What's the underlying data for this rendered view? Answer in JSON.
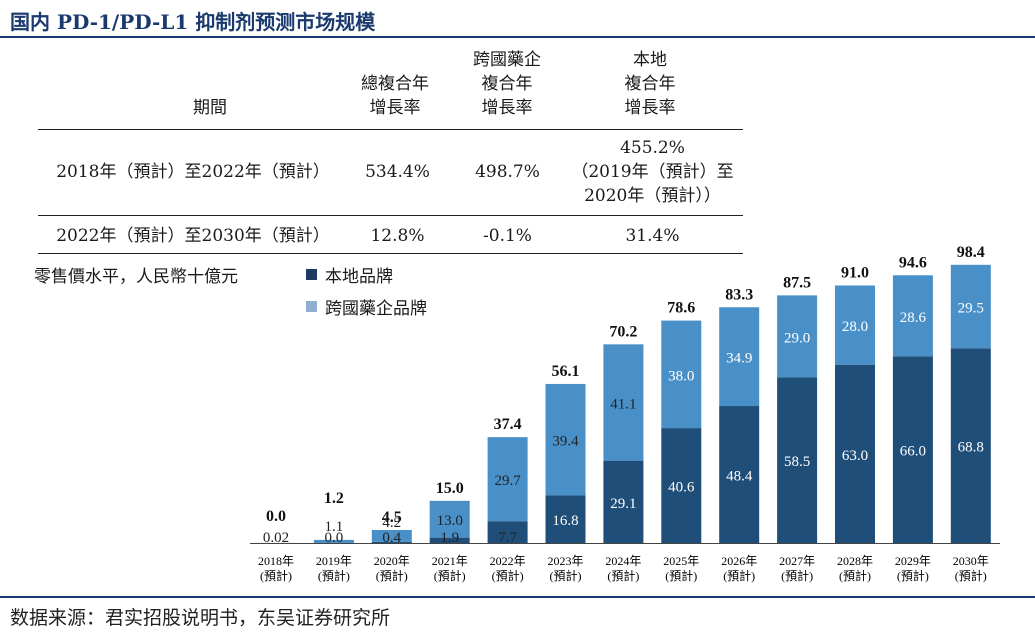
{
  "title": "国内 PD-1/PD-L1 抑制剂预测市场规模",
  "table": {
    "headers": {
      "period": "期間",
      "total": [
        "總複合年",
        "增長率"
      ],
      "mnc": [
        "跨國藥企",
        "複合年",
        "增長率"
      ],
      "local": [
        "本地",
        "複合年",
        "增長率"
      ]
    },
    "rows": [
      {
        "period": "2018年（預計）至2022年（預計）",
        "total": "534.4%",
        "mnc": "498.7%",
        "local": [
          "455.2%",
          "（2019年（預計）至",
          "2020年（預計））"
        ]
      },
      {
        "period": "2022年（預計）至2030年（預計）",
        "total": "12.8%",
        "mnc": "-0.1%",
        "local": [
          "31.4%"
        ]
      }
    ]
  },
  "legend": {
    "unit": "零售價水平，人民幣十億元",
    "local": "本地品牌",
    "mnc": "跨國藥企品牌"
  },
  "colors": {
    "local": "#1f4e79",
    "mnc": "#4a90c8",
    "title": "#1a3a6e"
  },
  "chart_data": {
    "type": "bar",
    "stacked": true,
    "categories": [
      "2018年\n(預計)",
      "2019年\n(預計)",
      "2020年\n(預計)",
      "2021年\n(預計)",
      "2022年\n(預計)",
      "2023年\n(預計)",
      "2024年\n(預計)",
      "2025年\n(預計)",
      "2026年\n(預計)",
      "2027年\n(預計)",
      "2028年\n(預計)",
      "2029年\n(預計)",
      "2030年\n(預計)"
    ],
    "series": [
      {
        "name": "本地品牌",
        "values": [
          0.02,
          0.0,
          0.4,
          1.9,
          7.7,
          16.8,
          29.1,
          40.6,
          48.4,
          58.5,
          63.0,
          66.0,
          68.8
        ]
      },
      {
        "name": "跨國藥企品牌",
        "values": [
          0.0,
          1.1,
          4.2,
          13.0,
          29.7,
          39.4,
          41.1,
          38.0,
          34.9,
          29.0,
          28.0,
          28.6,
          29.5
        ]
      }
    ],
    "local_labels": [
      "0.02",
      "0.0",
      "0.4",
      "1.9",
      "7.7",
      "16.8",
      "29.1",
      "40.6",
      "48.4",
      "58.5",
      "63.0",
      "66.0",
      "68.8"
    ],
    "mnc_labels": [
      "",
      "1.1",
      "4.2",
      "13.0",
      "29.7",
      "39.4",
      "41.1",
      "38.0",
      "34.9",
      "29.0",
      "28.0",
      "28.6",
      "29.5"
    ],
    "totals": [
      "0.0",
      "1.2",
      "4.5",
      "15.0",
      "37.4",
      "56.1",
      "70.2",
      "78.6",
      "83.3",
      "87.5",
      "91.0",
      "94.6",
      "98.4"
    ],
    "ylim": [
      0,
      100
    ]
  },
  "footer": "数据来源：君实招股说明书，东吴证券研究所"
}
